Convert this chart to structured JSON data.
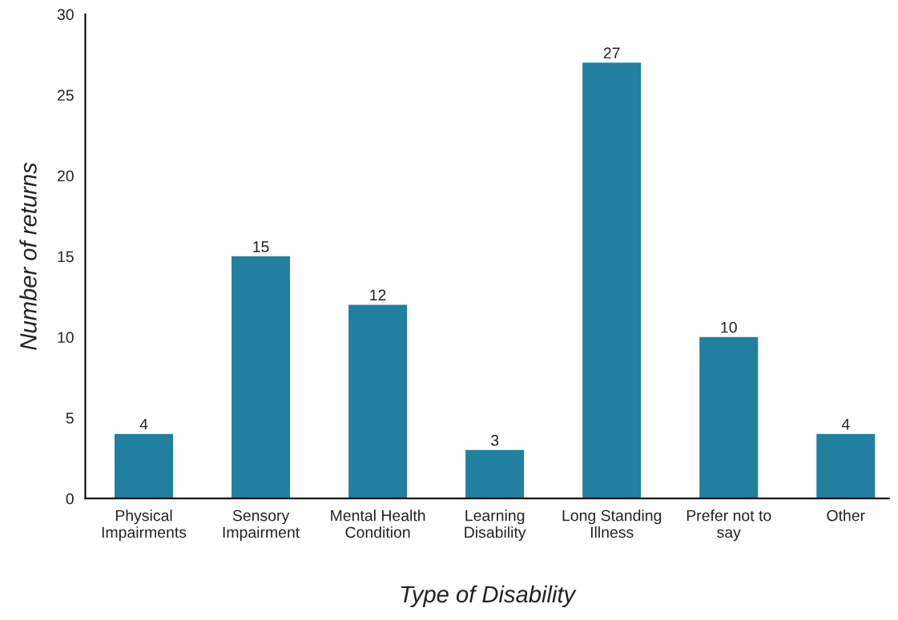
{
  "chart_data": {
    "type": "bar",
    "xlabel": "Type of Disability",
    "ylabel": "Number of returns",
    "categories": [
      "Physical\nImpairments",
      "Sensory\nImpairment",
      "Mental Health\nCondition",
      "Learning\nDisability",
      "Long Standing\nIllness",
      "Prefer not to\nsay",
      "Other"
    ],
    "values": [
      4,
      15,
      12,
      3,
      27,
      10,
      4
    ],
    "color": "#217fa0",
    "ylim": [
      0,
      30
    ],
    "yticks": [
      0,
      5,
      10,
      15,
      20,
      25,
      30
    ],
    "grid": false,
    "data_labels": true
  }
}
